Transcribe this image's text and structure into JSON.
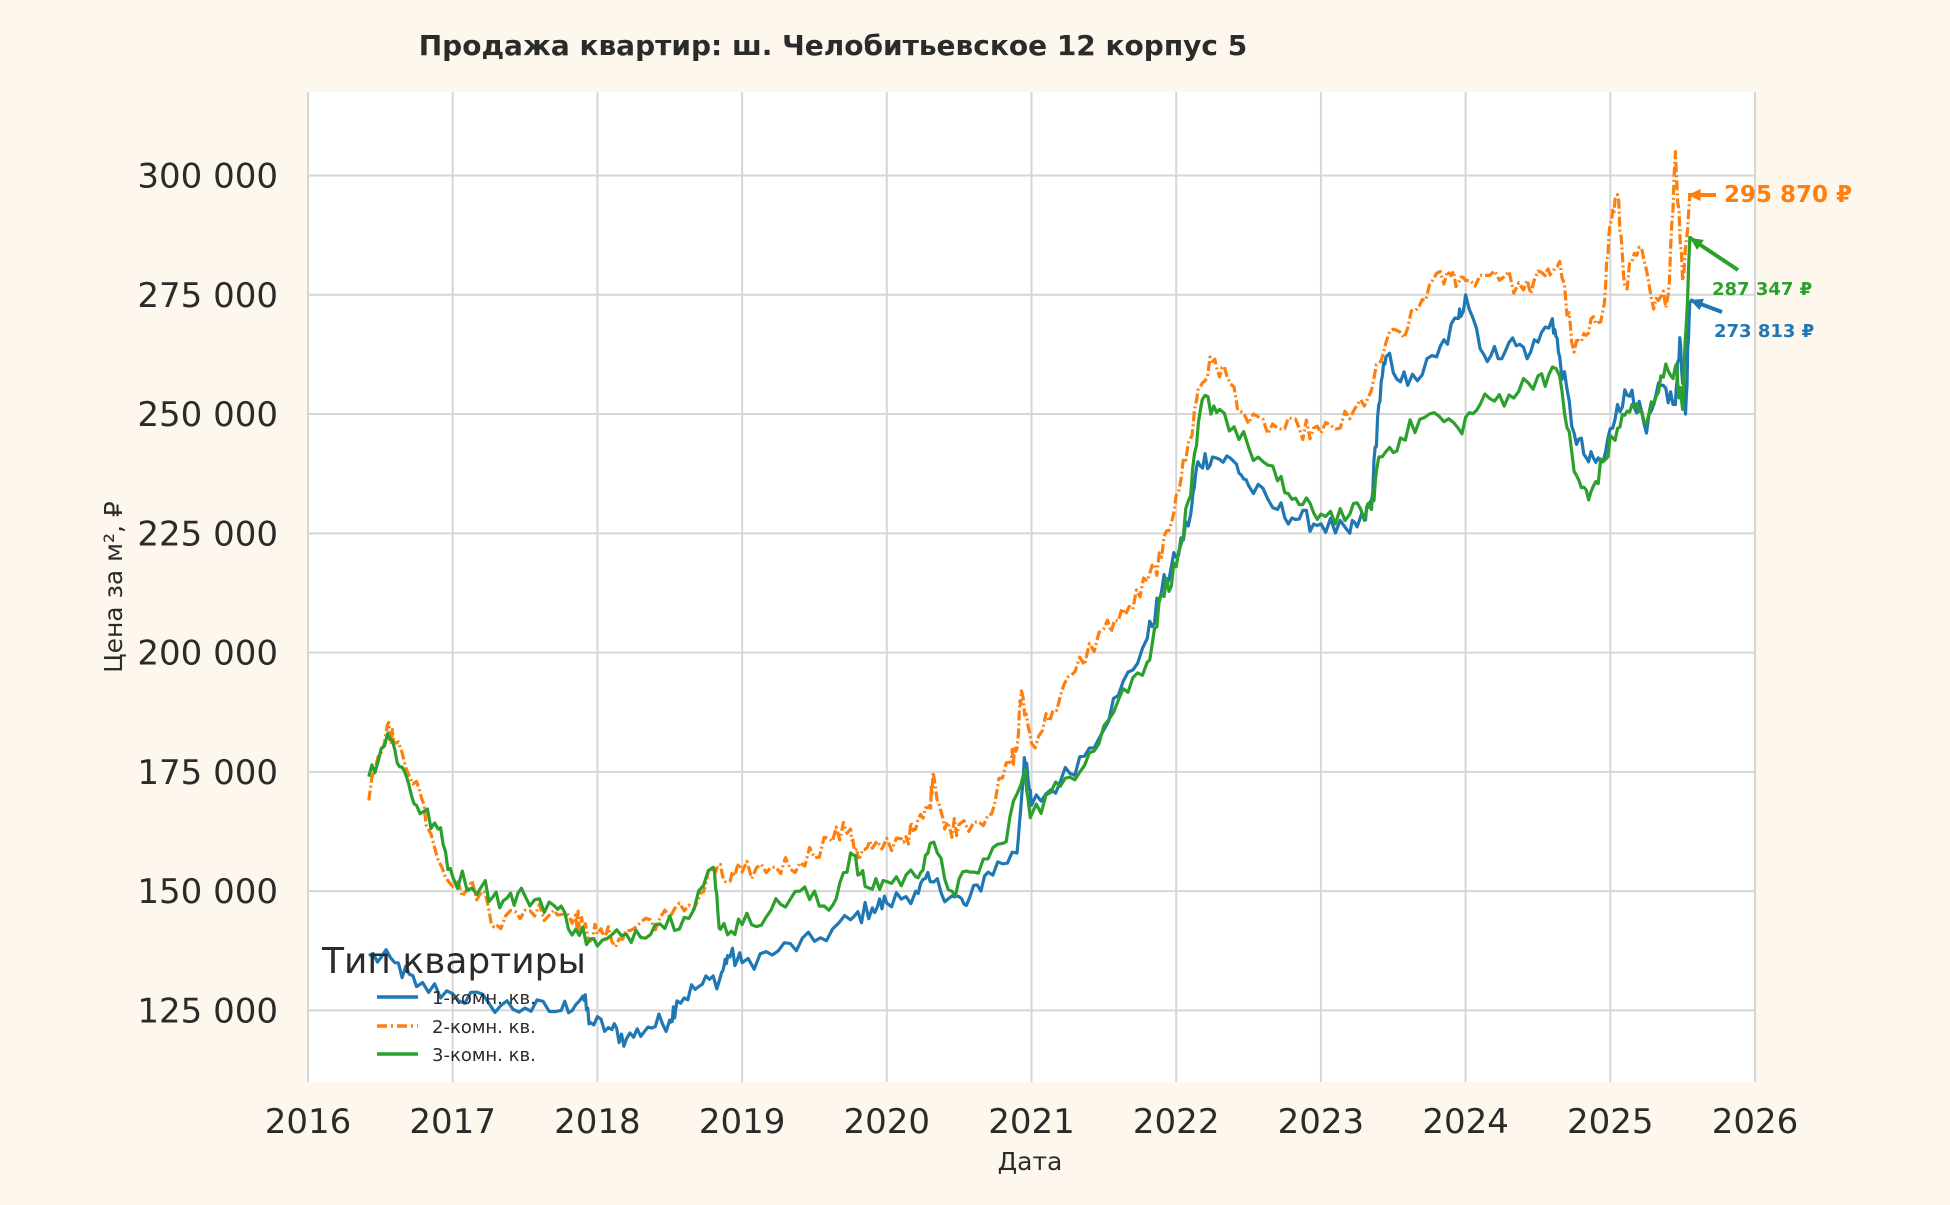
{
  "chart_data": {
    "type": "line",
    "title": "Продажа квартир: ш. Челобитьевское 12 корпус 5",
    "xlabel": "Дата",
    "ylabel": "Цена за м², ₽",
    "x_ticks": [
      "2016",
      "2017",
      "2018",
      "2019",
      "2020",
      "2021",
      "2022",
      "2023",
      "2024",
      "2025",
      "2026"
    ],
    "y_ticks": [
      "125 000",
      "150 000",
      "175 000",
      "200 000",
      "225 000",
      "250 000",
      "275 000",
      "300 000"
    ],
    "xlim": [
      2016.0,
      2026.0
    ],
    "ylim": [
      110000,
      317500
    ],
    "grid": true,
    "legend": {
      "title": "Тип квартиры",
      "position": "lower-left"
    },
    "series": [
      {
        "name": "1-комн. кв.",
        "color": "#1f77b4",
        "points": [
          [
            2016.42,
            136500
          ],
          [
            2016.6,
            135000
          ],
          [
            2016.75,
            130000
          ],
          [
            2017.0,
            128500
          ],
          [
            2017.25,
            126500
          ],
          [
            2017.5,
            125500
          ],
          [
            2017.75,
            125000
          ],
          [
            2017.9,
            128000
          ],
          [
            2017.95,
            122500
          ],
          [
            2018.1,
            121000
          ],
          [
            2018.2,
            119000
          ],
          [
            2018.35,
            121500
          ],
          [
            2018.5,
            123000
          ],
          [
            2018.55,
            127000
          ],
          [
            2018.7,
            130000
          ],
          [
            2018.85,
            132000
          ],
          [
            2018.9,
            136500
          ],
          [
            2019.0,
            135000
          ],
          [
            2019.25,
            137500
          ],
          [
            2019.5,
            139500
          ],
          [
            2019.75,
            144000
          ],
          [
            2019.9,
            146500
          ],
          [
            2020.0,
            147500
          ],
          [
            2020.2,
            150000
          ],
          [
            2020.3,
            152000
          ],
          [
            2020.45,
            149000
          ],
          [
            2020.55,
            147000
          ],
          [
            2020.7,
            154000
          ],
          [
            2020.9,
            158000
          ],
          [
            2020.95,
            178000
          ],
          [
            2021.0,
            168000
          ],
          [
            2021.2,
            173000
          ],
          [
            2021.4,
            180000
          ],
          [
            2021.6,
            191000
          ],
          [
            2021.8,
            203000
          ],
          [
            2021.9,
            213000
          ],
          [
            2022.0,
            220000
          ],
          [
            2022.1,
            229000
          ],
          [
            2022.15,
            240000
          ],
          [
            2022.25,
            241000
          ],
          [
            2022.4,
            240000
          ],
          [
            2022.5,
            235000
          ],
          [
            2022.7,
            230000
          ],
          [
            2022.85,
            228000
          ],
          [
            2023.0,
            227000
          ],
          [
            2023.2,
            225000
          ],
          [
            2023.3,
            228000
          ],
          [
            2023.35,
            232000
          ],
          [
            2023.4,
            252000
          ],
          [
            2023.45,
            262000
          ],
          [
            2023.6,
            256000
          ],
          [
            2023.8,
            262000
          ],
          [
            2023.95,
            270000
          ],
          [
            2024.0,
            275000
          ],
          [
            2024.15,
            261000
          ],
          [
            2024.3,
            265000
          ],
          [
            2024.45,
            263000
          ],
          [
            2024.6,
            270000
          ],
          [
            2024.65,
            262000
          ],
          [
            2024.75,
            246000
          ],
          [
            2024.85,
            240000
          ],
          [
            2024.95,
            240000
          ],
          [
            2025.05,
            252000
          ],
          [
            2025.15,
            255000
          ],
          [
            2025.25,
            246000
          ],
          [
            2025.35,
            256000
          ],
          [
            2025.45,
            252000
          ],
          [
            2025.48,
            266000
          ],
          [
            2025.52,
            250000
          ],
          [
            2025.55,
            273813
          ]
        ]
      },
      {
        "name": "2-комн. кв.",
        "color": "#ff7f0e",
        "dashed": true,
        "points": [
          [
            2016.42,
            169000
          ],
          [
            2016.55,
            185000
          ],
          [
            2016.6,
            181000
          ],
          [
            2016.75,
            173000
          ],
          [
            2016.85,
            162000
          ],
          [
            2017.0,
            151000
          ],
          [
            2017.2,
            150000
          ],
          [
            2017.3,
            143000
          ],
          [
            2017.5,
            146000
          ],
          [
            2017.7,
            146000
          ],
          [
            2017.85,
            145000
          ],
          [
            2017.9,
            142000
          ],
          [
            2018.0,
            141000
          ],
          [
            2018.15,
            140000
          ],
          [
            2018.3,
            143500
          ],
          [
            2018.5,
            144500
          ],
          [
            2018.7,
            148500
          ],
          [
            2018.8,
            155000
          ],
          [
            2018.9,
            152000
          ],
          [
            2019.0,
            154000
          ],
          [
            2019.2,
            155000
          ],
          [
            2019.4,
            156000
          ],
          [
            2019.6,
            161000
          ],
          [
            2019.75,
            163000
          ],
          [
            2019.8,
            157000
          ],
          [
            2019.9,
            159000
          ],
          [
            2020.1,
            161000
          ],
          [
            2020.2,
            163000
          ],
          [
            2020.3,
            168000
          ],
          [
            2020.32,
            175000
          ],
          [
            2020.4,
            163000
          ],
          [
            2020.5,
            164000
          ],
          [
            2020.7,
            166000
          ],
          [
            2020.85,
            177000
          ],
          [
            2020.9,
            180000
          ],
          [
            2020.93,
            192000
          ],
          [
            2021.0,
            181000
          ],
          [
            2021.15,
            188000
          ],
          [
            2021.3,
            196000
          ],
          [
            2021.5,
            205000
          ],
          [
            2021.65,
            208000
          ],
          [
            2021.8,
            215000
          ],
          [
            2021.9,
            220000
          ],
          [
            2022.0,
            233000
          ],
          [
            2022.1,
            245000
          ],
          [
            2022.15,
            255000
          ],
          [
            2022.25,
            261000
          ],
          [
            2022.35,
            258000
          ],
          [
            2022.5,
            248000
          ],
          [
            2022.7,
            247000
          ],
          [
            2022.85,
            247000
          ],
          [
            2023.0,
            246000
          ],
          [
            2023.2,
            249000
          ],
          [
            2023.35,
            255000
          ],
          [
            2023.45,
            265000
          ],
          [
            2023.6,
            268000
          ],
          [
            2023.75,
            277000
          ],
          [
            2023.9,
            279000
          ],
          [
            2024.0,
            278000
          ],
          [
            2024.2,
            280000
          ],
          [
            2024.4,
            276000
          ],
          [
            2024.55,
            279000
          ],
          [
            2024.65,
            282000
          ],
          [
            2024.75,
            263000
          ],
          [
            2024.85,
            267000
          ],
          [
            2024.95,
            272000
          ],
          [
            2025.0,
            290000
          ],
          [
            2025.05,
            296000
          ],
          [
            2025.1,
            277000
          ],
          [
            2025.2,
            285000
          ],
          [
            2025.3,
            272000
          ],
          [
            2025.4,
            275000
          ],
          [
            2025.45,
            305000
          ],
          [
            2025.5,
            278000
          ],
          [
            2025.55,
            295870
          ]
        ]
      },
      {
        "name": "3-комн. кв.",
        "color": "#2ca02c",
        "points": [
          [
            2016.42,
            174000
          ],
          [
            2016.55,
            183000
          ],
          [
            2016.65,
            176000
          ],
          [
            2016.75,
            168000
          ],
          [
            2016.9,
            163000
          ],
          [
            2017.0,
            153000
          ],
          [
            2017.2,
            151000
          ],
          [
            2017.35,
            148000
          ],
          [
            2017.5,
            149000
          ],
          [
            2017.7,
            147000
          ],
          [
            2017.85,
            142000
          ],
          [
            2018.0,
            138500
          ],
          [
            2018.2,
            141000
          ],
          [
            2018.4,
            143000
          ],
          [
            2018.6,
            144500
          ],
          [
            2018.8,
            155000
          ],
          [
            2018.85,
            142000
          ],
          [
            2019.0,
            143000
          ],
          [
            2019.2,
            146000
          ],
          [
            2019.4,
            150000
          ],
          [
            2019.6,
            146000
          ],
          [
            2019.75,
            158000
          ],
          [
            2019.85,
            151000
          ],
          [
            2020.0,
            152000
          ],
          [
            2020.2,
            153000
          ],
          [
            2020.3,
            160000
          ],
          [
            2020.45,
            150000
          ],
          [
            2020.6,
            154000
          ],
          [
            2020.8,
            160000
          ],
          [
            2020.95,
            175000
          ],
          [
            2021.0,
            166000
          ],
          [
            2021.2,
            172000
          ],
          [
            2021.4,
            179000
          ],
          [
            2021.6,
            190000
          ],
          [
            2021.8,
            198000
          ],
          [
            2021.9,
            212000
          ],
          [
            2022.0,
            218000
          ],
          [
            2022.1,
            233000
          ],
          [
            2022.18,
            253000
          ],
          [
            2022.3,
            251000
          ],
          [
            2022.5,
            243000
          ],
          [
            2022.7,
            236000
          ],
          [
            2022.85,
            231000
          ],
          [
            2023.0,
            229000
          ],
          [
            2023.2,
            229000
          ],
          [
            2023.35,
            230000
          ],
          [
            2023.4,
            241000
          ],
          [
            2023.55,
            245000
          ],
          [
            2023.75,
            250000
          ],
          [
            2023.95,
            247000
          ],
          [
            2024.1,
            252000
          ],
          [
            2024.3,
            254000
          ],
          [
            2024.5,
            258000
          ],
          [
            2024.65,
            258000
          ],
          [
            2024.75,
            238000
          ],
          [
            2024.85,
            232000
          ],
          [
            2024.95,
            240000
          ],
          [
            2025.05,
            247000
          ],
          [
            2025.15,
            252000
          ],
          [
            2025.25,
            248000
          ],
          [
            2025.35,
            258000
          ],
          [
            2025.45,
            260000
          ],
          [
            2025.5,
            251000
          ],
          [
            2025.55,
            287347
          ]
        ]
      }
    ],
    "annotations": [
      {
        "text": "295 870 ₽",
        "color": "#ff7f0e",
        "value": 295870,
        "series": "2-комн. кв."
      },
      {
        "text": "287 347 ₽",
        "color": "#2ca02c",
        "value": 287347,
        "series": "3-комн. кв."
      },
      {
        "text": "273 813 ₽",
        "color": "#1f77b4",
        "value": 273813,
        "series": "1-комн. кв."
      }
    ]
  }
}
